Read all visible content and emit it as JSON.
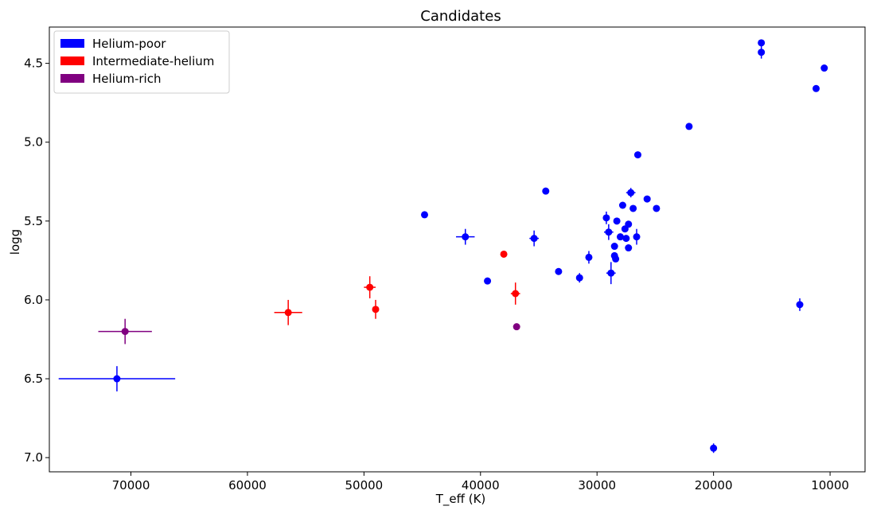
{
  "chart_data": {
    "type": "scatter",
    "title": "Candidates",
    "xlabel": "T_eff (K)",
    "ylabel": "logg",
    "x_inverted": true,
    "y_inverted": true,
    "xlim": [
      77000,
      7000
    ],
    "ylim": [
      4.27,
      7.09
    ],
    "x_ticks": [
      70000,
      60000,
      50000,
      40000,
      30000,
      20000,
      10000
    ],
    "y_ticks": [
      4.5,
      5.0,
      5.5,
      6.0,
      6.5,
      7.0
    ],
    "grid": false,
    "legend_position": "top-left",
    "series": [
      {
        "name": "Helium-poor",
        "color": "#0000ff",
        "points": [
          {
            "x": 71200,
            "y": 6.5,
            "xerr": 5000,
            "yerr": 0.08
          },
          {
            "x": 44800,
            "y": 5.46,
            "xerr": 0,
            "yerr": 0
          },
          {
            "x": 41300,
            "y": 5.6,
            "xerr": 800,
            "yerr": 0.05
          },
          {
            "x": 39400,
            "y": 5.88,
            "xerr": 0,
            "yerr": 0
          },
          {
            "x": 35400,
            "y": 5.61,
            "xerr": 400,
            "yerr": 0.05
          },
          {
            "x": 34400,
            "y": 5.31,
            "xerr": 0,
            "yerr": 0
          },
          {
            "x": 33300,
            "y": 5.82,
            "xerr": 0,
            "yerr": 0
          },
          {
            "x": 31500,
            "y": 5.86,
            "xerr": 0,
            "yerr": 0.03
          },
          {
            "x": 30700,
            "y": 5.73,
            "xerr": 0,
            "yerr": 0.04
          },
          {
            "x": 29200,
            "y": 5.48,
            "xerr": 0,
            "yerr": 0.04
          },
          {
            "x": 29000,
            "y": 5.57,
            "xerr": 400,
            "yerr": 0.05
          },
          {
            "x": 28800,
            "y": 5.83,
            "xerr": 400,
            "yerr": 0.07
          },
          {
            "x": 28500,
            "y": 5.66,
            "xerr": 0,
            "yerr": 0
          },
          {
            "x": 28500,
            "y": 5.72,
            "xerr": 0,
            "yerr": 0
          },
          {
            "x": 28400,
            "y": 5.74,
            "xerr": 0,
            "yerr": 0
          },
          {
            "x": 28300,
            "y": 5.5,
            "xerr": 0,
            "yerr": 0
          },
          {
            "x": 28000,
            "y": 5.6,
            "xerr": 0,
            "yerr": 0
          },
          {
            "x": 27800,
            "y": 5.4,
            "xerr": 0,
            "yerr": 0
          },
          {
            "x": 27600,
            "y": 5.55,
            "xerr": 0,
            "yerr": 0
          },
          {
            "x": 27500,
            "y": 5.61,
            "xerr": 0,
            "yerr": 0
          },
          {
            "x": 27300,
            "y": 5.52,
            "xerr": 0,
            "yerr": 0
          },
          {
            "x": 27300,
            "y": 5.67,
            "xerr": 0,
            "yerr": 0
          },
          {
            "x": 27100,
            "y": 5.32,
            "xerr": 400,
            "yerr": 0.03
          },
          {
            "x": 26900,
            "y": 5.42,
            "xerr": 0,
            "yerr": 0
          },
          {
            "x": 26600,
            "y": 5.6,
            "xerr": 0,
            "yerr": 0.05
          },
          {
            "x": 26500,
            "y": 5.08,
            "xerr": 0,
            "yerr": 0
          },
          {
            "x": 25700,
            "y": 5.36,
            "xerr": 0,
            "yerr": 0
          },
          {
            "x": 24900,
            "y": 5.42,
            "xerr": 0,
            "yerr": 0
          },
          {
            "x": 22100,
            "y": 4.9,
            "xerr": 0,
            "yerr": 0
          },
          {
            "x": 20000,
            "y": 6.94,
            "xerr": 0,
            "yerr": 0.03
          },
          {
            "x": 15900,
            "y": 4.37,
            "xerr": 0,
            "yerr": 0
          },
          {
            "x": 15900,
            "y": 4.43,
            "xerr": 0,
            "yerr": 0.04
          },
          {
            "x": 12600,
            "y": 6.03,
            "xerr": 0,
            "yerr": 0.04
          },
          {
            "x": 11200,
            "y": 4.66,
            "xerr": 0,
            "yerr": 0
          },
          {
            "x": 10500,
            "y": 4.53,
            "xerr": 0,
            "yerr": 0
          }
        ]
      },
      {
        "name": "Intermediate-helium",
        "color": "#ff0000",
        "points": [
          {
            "x": 56500,
            "y": 6.08,
            "xerr": 1200,
            "yerr": 0.08
          },
          {
            "x": 49500,
            "y": 5.92,
            "xerr": 500,
            "yerr": 0.07
          },
          {
            "x": 49000,
            "y": 6.06,
            "xerr": 0,
            "yerr": 0.06
          },
          {
            "x": 38000,
            "y": 5.71,
            "xerr": 0,
            "yerr": 0
          },
          {
            "x": 37000,
            "y": 5.96,
            "xerr": 400,
            "yerr": 0.07
          }
        ]
      },
      {
        "name": "Helium-rich",
        "color": "#800080",
        "points": [
          {
            "x": 70500,
            "y": 6.2,
            "xerr": 2300,
            "yerr": 0.08
          },
          {
            "x": 36900,
            "y": 6.17,
            "xerr": 0,
            "yerr": 0
          }
        ]
      }
    ]
  }
}
